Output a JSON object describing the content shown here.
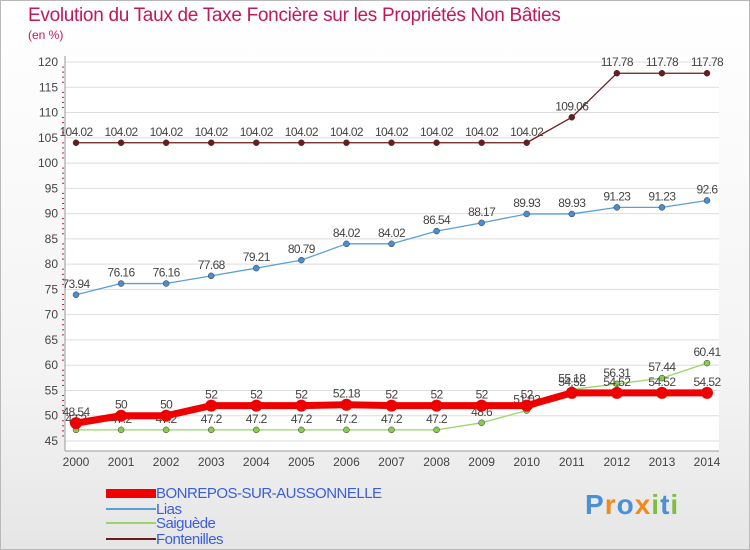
{
  "title": "Evolution du Taux de Taxe Foncière sur les Propriétés Non Bâties",
  "unit_label": "(en %)",
  "logo": {
    "letters": [
      "P",
      "r",
      "o",
      "x",
      "i",
      "t",
      "i"
    ],
    "colors": [
      "#4a90d9",
      "#f08a1c",
      "#4a90d9",
      "#f08a1c",
      "#7fbf3f",
      "#4a90d9",
      "#7fbf3f"
    ]
  },
  "colors": {
    "BONREPOS-SUR-AUSSONNELLE": "#ee0000",
    "Lias": "#5b9fd4",
    "Saiguède": "#9ad46a",
    "Fontenilles": "#6b1c1c",
    "title": "#c0185c",
    "legend_text": "#3a5edc"
  },
  "chart_data": {
    "type": "line",
    "title": "Evolution du Taux de Taxe Foncière sur les Propriétés Non Bâties",
    "ylabel": "(en %)",
    "xlabel": "",
    "ylim": [
      45,
      120
    ],
    "yticks": [
      45,
      50,
      55,
      60,
      65,
      70,
      75,
      80,
      85,
      90,
      95,
      100,
      105,
      110,
      115,
      120
    ],
    "categories": [
      "2000",
      "2001",
      "2002",
      "2003",
      "2004",
      "2005",
      "2006",
      "2007",
      "2008",
      "2009",
      "2010",
      "2011",
      "2012",
      "2013",
      "2014"
    ],
    "series": [
      {
        "name": "Fontenilles",
        "values": [
          104.02,
          104.02,
          104.02,
          104.02,
          104.02,
          104.02,
          104.02,
          104.02,
          104.02,
          104.02,
          104.02,
          109.06,
          117.78,
          117.78,
          117.78
        ],
        "labels": [
          "104.02",
          "104.02",
          "104.02",
          "104.02",
          "104.02",
          "104.02",
          "104.02",
          "104.02",
          "104.02",
          "104.02",
          "104.02",
          "109.06",
          "117.78",
          "117.78",
          "117.78"
        ]
      },
      {
        "name": "Lias",
        "values": [
          73.94,
          76.16,
          76.16,
          77.68,
          79.21,
          80.79,
          84.02,
          84.02,
          86.54,
          88.17,
          89.93,
          89.93,
          91.23,
          91.23,
          92.6
        ],
        "labels": [
          "73.94",
          "76.16",
          "76.16",
          "77.68",
          "79.21",
          "80.79",
          "84.02",
          "84.02",
          "86.54",
          "88.17",
          "89.93",
          "89.93",
          "91.23",
          "91.23",
          "92.6"
        ]
      },
      {
        "name": "Saiguède",
        "values": [
          47.2,
          47.2,
          47.2,
          47.2,
          47.2,
          47.2,
          47.2,
          47.2,
          47.2,
          48.6,
          51.03,
          55.18,
          56.31,
          57.44,
          60.41
        ],
        "labels": [
          "47.2",
          "47.2",
          "47.2",
          "47.2",
          "47.2",
          "47.2",
          "47.2",
          "47.2",
          "47.2",
          "48.6",
          "51.03",
          "55.18",
          "56.31",
          "57.44",
          "60.41"
        ]
      },
      {
        "name": "BONREPOS-SUR-AUSSONNELLE",
        "values": [
          48.54,
          50,
          50,
          52,
          52,
          52,
          52.18,
          52,
          52,
          52,
          52,
          54.52,
          54.52,
          54.52,
          54.52
        ],
        "labels": [
          "48.54",
          "50",
          "50",
          "52",
          "52",
          "52",
          "52.18",
          "52",
          "52",
          "52",
          "52",
          "54.52",
          "54.52",
          "54.52",
          "54.52"
        ]
      }
    ]
  }
}
